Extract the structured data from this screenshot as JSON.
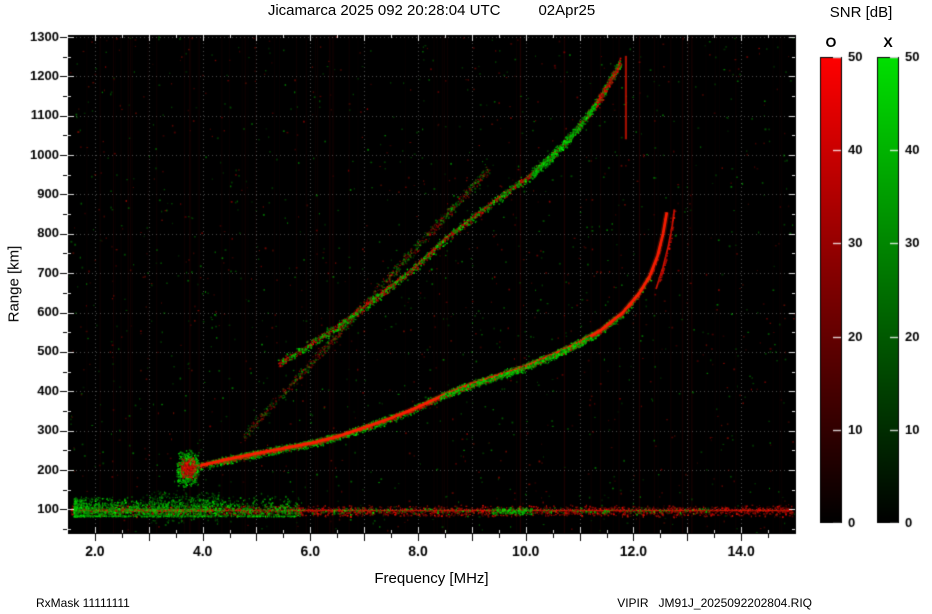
{
  "footer": {
    "rxmask": "RxMask 11111111",
    "vipir": "VIPIR",
    "filename": "JM91J_2025092202804.RIQ"
  },
  "chart_data": {
    "type": "heatmap",
    "title": "Jicamarca 2025 092 20:28:04 UTC",
    "date_label": "02Apr25",
    "xlabel": "Frequency [MHz]",
    "ylabel": "Range [km]",
    "xlim": [
      1.5,
      15.0
    ],
    "ylim": [
      40,
      1305
    ],
    "x_major_ticks": [
      2,
      4,
      6,
      8,
      10,
      12,
      14
    ],
    "x_tick_labels": [
      "2.0",
      "4.0",
      "6.0",
      "8.0",
      "10.0",
      "12.0",
      "14.0"
    ],
    "x_minor_step": 0.5,
    "y_tick_values": [
      100,
      200,
      300,
      400,
      500,
      600,
      700,
      800,
      900,
      1000,
      1100,
      1200,
      1300
    ],
    "grid": {
      "x_step_mhz": 1,
      "y_step_km": 100,
      "style": "dotted"
    },
    "plot_bg": "#000000",
    "colorbar": {
      "label": "SNR [dB]",
      "range": [
        0,
        50
      ],
      "ticks": [
        0,
        10,
        20,
        30,
        40,
        50
      ],
      "bars": [
        {
          "name": "O",
          "color": "#ff0000"
        },
        {
          "name": "X",
          "color": "#00e000"
        }
      ]
    },
    "traces": {
      "f_layer_o_mode": {
        "color": "#ff1c00",
        "points": [
          [
            3.58,
            196
          ],
          [
            3.7,
            202
          ],
          [
            4.0,
            213
          ],
          [
            4.5,
            228
          ],
          [
            5.0,
            242
          ],
          [
            5.5,
            255
          ],
          [
            6.0,
            268
          ],
          [
            6.5,
            285
          ],
          [
            7.0,
            308
          ],
          [
            7.5,
            332
          ],
          [
            8.0,
            360
          ],
          [
            8.5,
            392
          ],
          [
            9.0,
            418
          ],
          [
            9.5,
            440
          ],
          [
            10.0,
            463
          ],
          [
            10.5,
            492
          ],
          [
            11.0,
            524
          ],
          [
            11.4,
            556
          ],
          [
            11.8,
            600
          ],
          [
            12.1,
            648
          ],
          [
            12.3,
            692
          ],
          [
            12.45,
            745
          ],
          [
            12.55,
            800
          ],
          [
            12.62,
            855
          ]
        ]
      },
      "f_layer_x_arc": {
        "color": "#e81400",
        "points": [
          [
            12.42,
            660
          ],
          [
            12.55,
            715
          ],
          [
            12.65,
            770
          ],
          [
            12.72,
            820
          ],
          [
            12.76,
            862
          ]
        ]
      },
      "second_hop": {
        "color": "#c81e00",
        "points": [
          [
            5.4,
            470
          ],
          [
            6.0,
            520
          ],
          [
            6.5,
            565
          ],
          [
            7.0,
            615
          ],
          [
            7.5,
            668
          ],
          [
            8.0,
            722
          ],
          [
            8.5,
            788
          ],
          [
            9.0,
            840
          ],
          [
            9.5,
            892
          ],
          [
            10.0,
            940
          ],
          [
            10.5,
            1000
          ],
          [
            11.0,
            1075
          ],
          [
            11.4,
            1150
          ],
          [
            11.75,
            1235
          ]
        ]
      },
      "third_hop_faint": {
        "color": "#8a1000",
        "points": [
          [
            4.75,
            285
          ],
          [
            6.0,
            472
          ],
          [
            7.0,
            622
          ],
          [
            8.0,
            772
          ],
          [
            9.3,
            965
          ]
        ]
      },
      "e_region": {
        "line_range_km": 97,
        "freq_span": [
          1.55,
          14.95
        ],
        "fuzz_range_km": [
          85,
          120
        ],
        "green_freq_span": [
          1.6,
          5.8
        ],
        "green_range_km": [
          84,
          158
        ]
      }
    },
    "noise": {
      "background_dots": 1500,
      "interference_lines": 70,
      "blob_center": [
        3.72,
        205
      ]
    }
  }
}
